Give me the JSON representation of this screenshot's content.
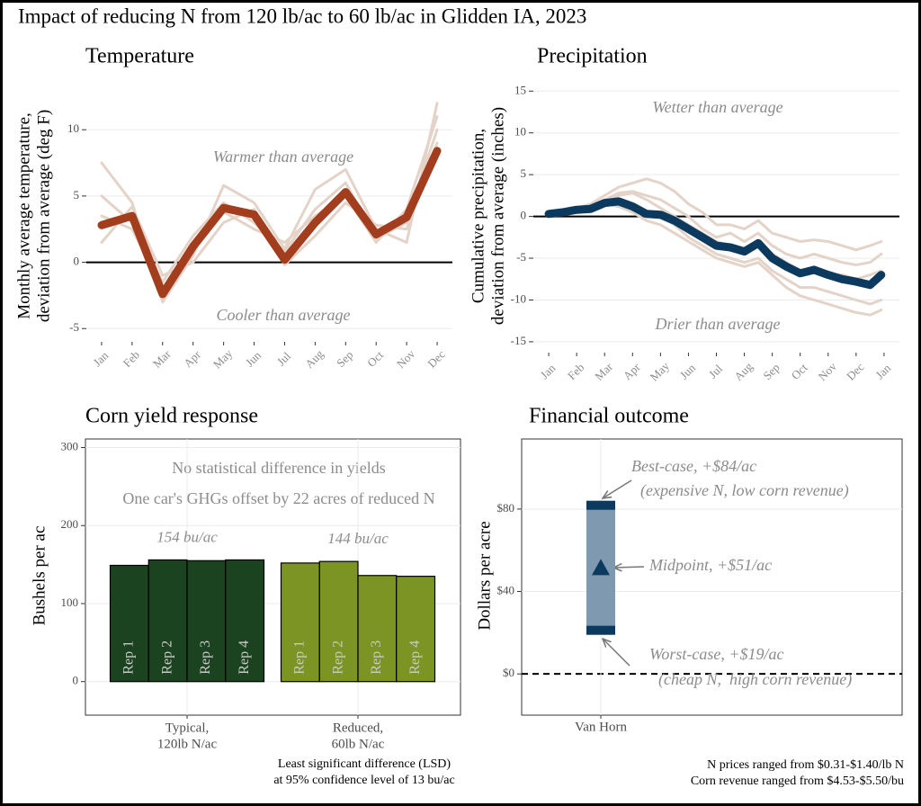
{
  "title": "Impact of reducing N from 120 lb/ac to 60 lb/ac in Glidden IA, 2023",
  "chart_data": [
    {
      "type": "line",
      "title": "Temperature",
      "y_label": [
        "Monthly average temperature,",
        "deviation from average (deg F)"
      ],
      "annotations": [
        "Warmer than average",
        "Cooler than average"
      ],
      "categories": [
        "Jan",
        "Feb",
        "Mar",
        "Apr",
        "May",
        "Jun",
        "Jul",
        "Aug",
        "Sep",
        "Oct",
        "Nov",
        "Dec"
      ],
      "ylim": [
        -6,
        13
      ],
      "yticks": [
        -5,
        0,
        5,
        10
      ],
      "reference_line": 0,
      "series": [
        {
          "color": "#e3d3c8",
          "values": [
            7.5,
            4.5,
            -3.0,
            0.5,
            5.8,
            4.5,
            1.0,
            5.5,
            7.0,
            2.5,
            1.5,
            12.0
          ]
        },
        {
          "color": "#e3d3c8",
          "values": [
            5.0,
            3.0,
            -1.5,
            2.0,
            4.5,
            3.0,
            0.8,
            4.0,
            6.0,
            1.8,
            3.0,
            10.0
          ]
        },
        {
          "color": "#e3d3c8",
          "values": [
            1.5,
            4.2,
            -1.0,
            0.0,
            3.0,
            4.0,
            -0.2,
            2.0,
            4.5,
            2.8,
            2.5,
            9.0
          ]
        },
        {
          "color": "#e3d3c8",
          "values": [
            3.5,
            2.5,
            -2.0,
            1.5,
            3.8,
            2.5,
            1.5,
            3.5,
            5.0,
            1.5,
            4.0,
            11.0
          ]
        },
        {
          "color": "#a23d1e",
          "values": [
            2.8,
            3.5,
            -2.4,
            1.2,
            4.1,
            3.6,
            0.2,
            3.0,
            5.3,
            2.1,
            3.4,
            8.4
          ]
        }
      ]
    },
    {
      "type": "line",
      "title": "Precipitation",
      "y_label": [
        "Cumulative precipitation,",
        "deviation from average (inches)"
      ],
      "annotations": [
        "Wetter than average",
        "Drier than average"
      ],
      "x": [
        0,
        0.5,
        1,
        1.5,
        2,
        2.5,
        3,
        3.5,
        4,
        4.5,
        5,
        5.5,
        6,
        6.5,
        7,
        7.5,
        8,
        8.5,
        9,
        9.5,
        10,
        10.5,
        11,
        11.5,
        11.9
      ],
      "xlim": [
        -0.55,
        12.55
      ],
      "xticks": [
        {
          "value": 0,
          "label": "Jan"
        },
        {
          "value": 1,
          "label": "Feb"
        },
        {
          "value": 2,
          "label": "Mar"
        },
        {
          "value": 3,
          "label": "Apr"
        },
        {
          "value": 4,
          "label": "May"
        },
        {
          "value": 5,
          "label": "Jun"
        },
        {
          "value": 6,
          "label": "Jul"
        },
        {
          "value": 7,
          "label": "Aug"
        },
        {
          "value": 8,
          "label": "Sep"
        },
        {
          "value": 9,
          "label": "Oct"
        },
        {
          "value": 10,
          "label": "Nov"
        },
        {
          "value": 11,
          "label": "Dec"
        },
        {
          "value": 12,
          "label": "Jan"
        }
      ],
      "ylim": [
        -16.3,
        16
      ],
      "yticks": [
        -15,
        -10,
        -5,
        0,
        5,
        10,
        15
      ],
      "reference_line": 0,
      "series": [
        {
          "color": "#e3d3c8",
          "values": [
            0.3,
            0.6,
            1.0,
            1.5,
            2.5,
            3.5,
            4.0,
            4.5,
            4.0,
            3.0,
            1.5,
            0.5,
            -1.0,
            -1.0,
            -1.5,
            -0.5,
            -2.0,
            -2.5,
            -3.0,
            -2.8,
            -3.0,
            -3.5,
            -4.0,
            -3.5,
            -3.0
          ]
        },
        {
          "color": "#e3d3c8",
          "values": [
            0.2,
            0.5,
            0.8,
            1.2,
            2.0,
            2.8,
            3.0,
            2.5,
            2.0,
            1.0,
            0.0,
            -1.5,
            -2.5,
            -2.0,
            -3.0,
            -2.0,
            -3.5,
            -4.5,
            -5.0,
            -4.5,
            -5.0,
            -5.5,
            -5.8,
            -5.5,
            -4.5
          ]
        },
        {
          "color": "#e3d3c8",
          "values": [
            0.3,
            0.4,
            0.7,
            0.9,
            1.5,
            2.0,
            1.5,
            0.5,
            0.0,
            -1.0,
            -2.5,
            -3.5,
            -4.5,
            -5.0,
            -5.5,
            -5.0,
            -6.5,
            -7.5,
            -8.5,
            -8.5,
            -9.0,
            -9.5,
            -10.0,
            -10.5,
            -10.0
          ]
        },
        {
          "color": "#e3d3c8",
          "values": [
            0.2,
            0.4,
            0.6,
            1.0,
            1.5,
            1.2,
            0.5,
            -0.5,
            -1.0,
            -2.0,
            -3.0,
            -4.0,
            -5.0,
            -5.5,
            -6.0,
            -5.5,
            -7.0,
            -8.5,
            -9.5,
            -10.0,
            -10.5,
            -11.0,
            -11.5,
            -11.8,
            -11.2
          ]
        },
        {
          "color": "#e3d3c8",
          "values": [
            0.3,
            0.5,
            0.8,
            1.2,
            2.0,
            2.5,
            2.8,
            2.0,
            1.0,
            0.0,
            -1.0,
            -2.0,
            -3.0,
            -3.5,
            -4.0,
            -3.0,
            -4.5,
            -5.5,
            -6.5,
            -6.0,
            -7.0,
            -7.0,
            -7.5,
            -7.0,
            -6.5
          ]
        },
        {
          "color": "#0b3a5e",
          "values": [
            0.3,
            0.5,
            0.8,
            0.9,
            1.6,
            1.8,
            1.2,
            0.3,
            0.2,
            -0.5,
            -1.5,
            -2.5,
            -3.5,
            -3.7,
            -4.2,
            -3.2,
            -5.0,
            -6.0,
            -6.8,
            -6.4,
            -7.0,
            -7.5,
            -7.8,
            -8.2,
            -7.0
          ]
        }
      ]
    },
    {
      "type": "bar",
      "title": "Corn yield response",
      "y_label": "Bushels per ac",
      "annotations": [
        "No statistical difference in yields",
        "One car's GHGs offset by 22 acres of reduced N"
      ],
      "categories": [
        [
          "Typical,",
          "120lb N/ac"
        ],
        [
          "Reduced,",
          "60lb N/ac"
        ]
      ],
      "colors": [
        "#1c4320",
        "#7c9423"
      ],
      "group_labels": [
        "154 bu/ac",
        "144 bu/ac"
      ],
      "series": [
        {
          "name": "Rep 1",
          "values": [
            149,
            152
          ]
        },
        {
          "name": "Rep 2",
          "values": [
            156,
            154
          ]
        },
        {
          "name": "Rep 3",
          "values": [
            155,
            136
          ]
        },
        {
          "name": "Rep 4",
          "values": [
            156,
            135
          ]
        }
      ],
      "ylim": [
        -43,
        311
      ],
      "yticks": [
        0,
        100,
        200,
        300
      ],
      "footnote": [
        "Least significant difference (LSD)",
        "at 95% confidence level of 13 bu/ac"
      ]
    },
    {
      "type": "range",
      "title": "Financial outcome",
      "y_label": "Dollars per acre",
      "categories": [
        "Van Horn"
      ],
      "low": [
        19
      ],
      "mid": [
        51
      ],
      "high": [
        84
      ],
      "bar_color": "#7f9ab0",
      "cap_color": "#0b3a5e",
      "ylim": [
        -20,
        114
      ],
      "yticks": [
        {
          "value": 0,
          "label": "$0"
        },
        {
          "value": 40,
          "label": "$40"
        },
        {
          "value": 80,
          "label": "$80"
        }
      ],
      "reference_line": 0,
      "annotations": [
        "Best-case, +$84/ac",
        "(expensive N, low corn revenue)",
        "Midpoint, +$51/ac",
        "Worst-case, +$19/ac",
        "(cheap N,  high corn revenue)"
      ],
      "footnote": [
        "N prices ranged from $0.31-$1.40/lb N",
        "Corn revenue ranged from $4.53-$5.50/bu"
      ]
    }
  ]
}
